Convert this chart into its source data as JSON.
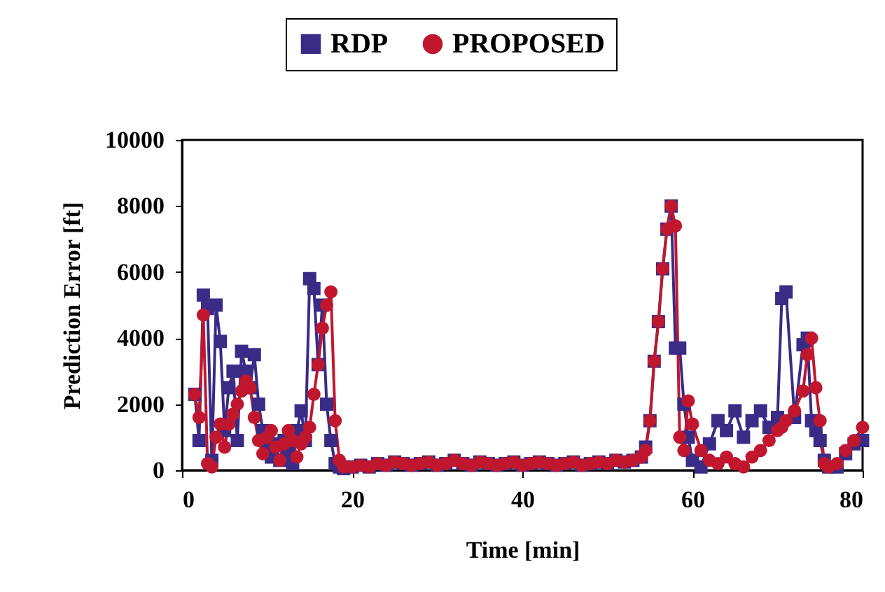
{
  "chart_data": {
    "type": "line",
    "xlabel": "Time  [min]",
    "ylabel": "Prediction Error  [ft]",
    "xlim": [
      0,
      80
    ],
    "xticks": [
      0,
      20,
      40,
      60,
      80
    ],
    "ylim": [
      0,
      10000
    ],
    "yticks": [
      0,
      2000,
      4000,
      6000,
      8000,
      10000
    ],
    "grid": false,
    "legend": "top",
    "x": [
      1.5,
      2,
      2.5,
      3,
      3.5,
      4,
      4.5,
      5,
      5.5,
      6,
      6.5,
      7,
      7.5,
      8,
      8.5,
      9,
      9.5,
      10,
      10.5,
      11,
      11.5,
      12,
      12.5,
      13,
      13.5,
      14,
      14.5,
      15,
      15.5,
      16,
      16.5,
      17,
      17.5,
      18,
      18.5,
      19,
      20,
      21,
      22,
      23,
      24,
      25,
      26,
      27,
      28,
      29,
      30,
      31,
      32,
      33,
      34,
      35,
      36,
      37,
      38,
      39,
      40,
      41,
      42,
      43,
      44,
      45,
      46,
      47,
      48,
      49,
      50,
      51,
      52,
      53,
      54,
      54.5,
      55,
      55.5,
      56,
      56.5,
      57,
      57.5,
      58,
      58.5,
      59,
      59.5,
      60,
      61,
      62,
      63,
      64,
      65,
      66,
      67,
      68,
      69,
      70,
      70.5,
      71,
      72,
      73,
      73.5,
      74,
      74.5,
      75,
      75.5,
      76,
      77,
      78,
      79,
      80
    ],
    "series": [
      {
        "name": "RDP",
        "color": "#3a2b87",
        "marker": "square",
        "values": [
          2300,
          900,
          5300,
          4900,
          300,
          5000,
          3900,
          1200,
          2500,
          3000,
          900,
          3600,
          3000,
          2500,
          3500,
          2000,
          1200,
          700,
          400,
          800,
          300,
          900,
          600,
          200,
          1200,
          1800,
          900,
          5800,
          5500,
          3200,
          5000,
          2000,
          900,
          200,
          100,
          50,
          100,
          150,
          100,
          200,
          150,
          250,
          200,
          150,
          200,
          250,
          150,
          200,
          300,
          200,
          150,
          250,
          200,
          150,
          200,
          250,
          150,
          200,
          250,
          200,
          150,
          200,
          250,
          150,
          200,
          250,
          200,
          300,
          250,
          300,
          400,
          700,
          1500,
          3300,
          4500,
          6100,
          7300,
          8000,
          3700,
          3700,
          2000,
          1000,
          300,
          100,
          800,
          1500,
          1200,
          1800,
          1000,
          1500,
          1800,
          1300,
          1600,
          5200,
          5400,
          1600,
          3800,
          4000,
          1500,
          1200,
          900,
          300,
          100,
          100,
          500,
          800,
          900
        ]
      },
      {
        "name": "PROPOSED",
        "color": "#c0172f",
        "marker": "circle",
        "values": [
          2300,
          1600,
          4700,
          200,
          100,
          1000,
          1400,
          700,
          1400,
          1700,
          2000,
          2400,
          2700,
          2500,
          1600,
          900,
          500,
          1000,
          1200,
          700,
          300,
          800,
          1200,
          900,
          400,
          800,
          1000,
          1300,
          2300,
          3200,
          4300,
          5000,
          5400,
          1500,
          300,
          100,
          100,
          150,
          100,
          200,
          150,
          250,
          200,
          150,
          200,
          250,
          150,
          200,
          300,
          200,
          150,
          250,
          200,
          150,
          200,
          250,
          150,
          200,
          250,
          200,
          150,
          200,
          250,
          150,
          200,
          250,
          200,
          300,
          250,
          300,
          400,
          600,
          1500,
          3300,
          4500,
          6100,
          7300,
          8000,
          7400,
          1000,
          600,
          2100,
          1400,
          600,
          300,
          200,
          400,
          200,
          100,
          400,
          600,
          900,
          1200,
          1300,
          1500,
          1800,
          2400,
          3500,
          4000,
          2500,
          1500,
          200,
          100,
          200,
          600,
          900,
          1300
        ]
      }
    ]
  }
}
